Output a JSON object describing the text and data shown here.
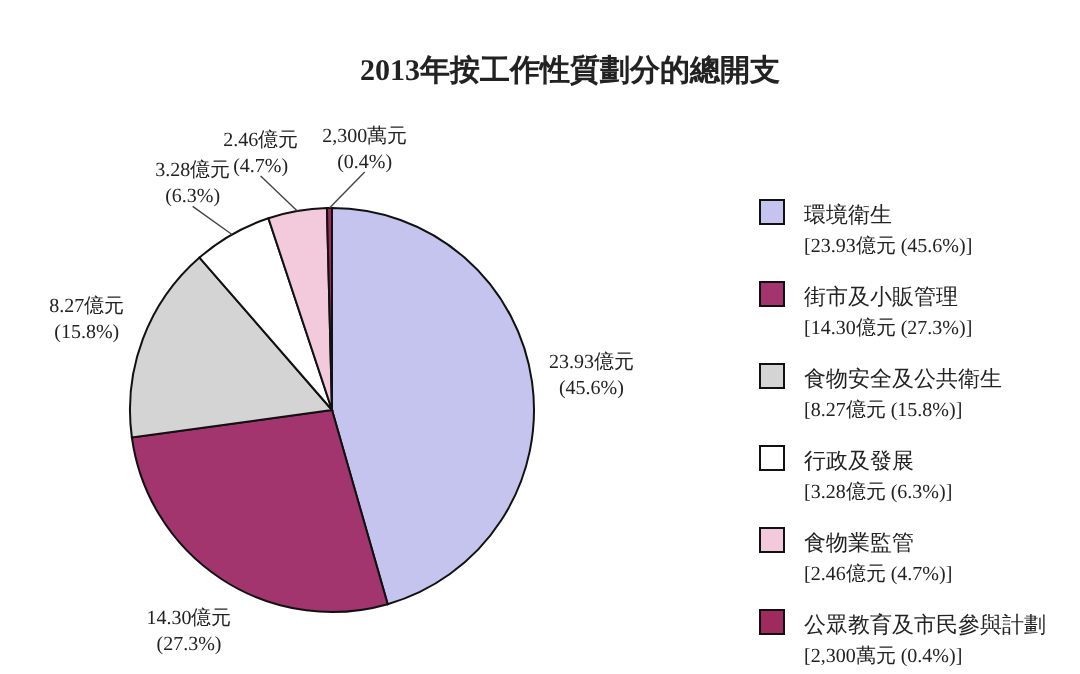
{
  "chart_data": {
    "type": "pie",
    "title": "2013年按工作性質劃分的總開支",
    "categories": [
      "環境衛生\n[23.93億元 (45.6%)]",
      "街市及小販管理\n[14.30億元 (27.3%)]",
      "食物安全及公共衛生\n[8.27億元 (15.8%)]",
      "行政及發展\n[3.28億元 (6.3%)]",
      "食物業監管\n[2.46億元 (4.7%)]",
      "公眾教育及市民參與計劃\n[2,300萬元 (0.4%)]"
    ],
    "values": [
      45.6,
      27.3,
      15.8,
      6.3,
      4.7,
      0.4
    ],
    "value_labels": [
      "23.93億元 (45.6%)",
      "14.30億元 (27.3%)",
      "8.27億元 (15.8%)",
      "3.28億元 (6.3%)",
      "2.46億元 (4.7%)",
      "2,300萬元 (0.4%)"
    ],
    "colors": [
      "#c4c4ee",
      "#a3356e",
      "#d4d4d4",
      "#ffffff",
      "#f2cadb",
      "#9e2a5e"
    ],
    "legend": "right"
  }
}
